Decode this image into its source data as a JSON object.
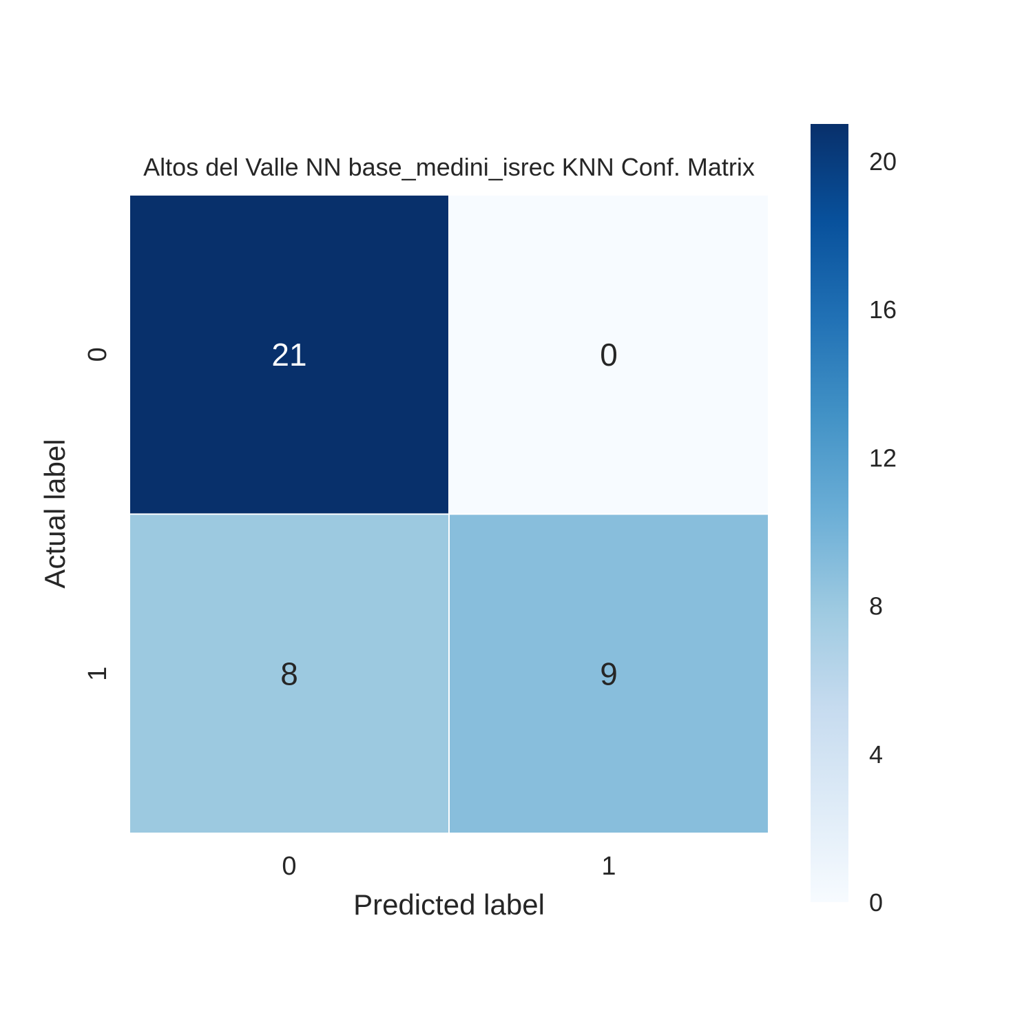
{
  "chart_data": {
    "type": "heatmap",
    "title": "Altos del Valle NN base_medini_isrec KNN Conf. Matrix",
    "xlabel": "Predicted label",
    "ylabel": "Actual label",
    "x_categories": [
      "0",
      "1"
    ],
    "y_categories": [
      "0",
      "1"
    ],
    "values": [
      [
        21,
        0
      ],
      [
        8,
        9
      ]
    ],
    "colormap": "Blues",
    "colorbar": {
      "range": [
        0,
        21
      ],
      "ticks": [
        0,
        4,
        8,
        12,
        16,
        20
      ]
    },
    "colors": {
      "low": "#f7fbff",
      "high": "#08306b",
      "text_dark": "#262626",
      "text_light": "#ffffff",
      "grid_line": "#ffffff"
    },
    "grid": false,
    "legend": "colorbar-right"
  }
}
